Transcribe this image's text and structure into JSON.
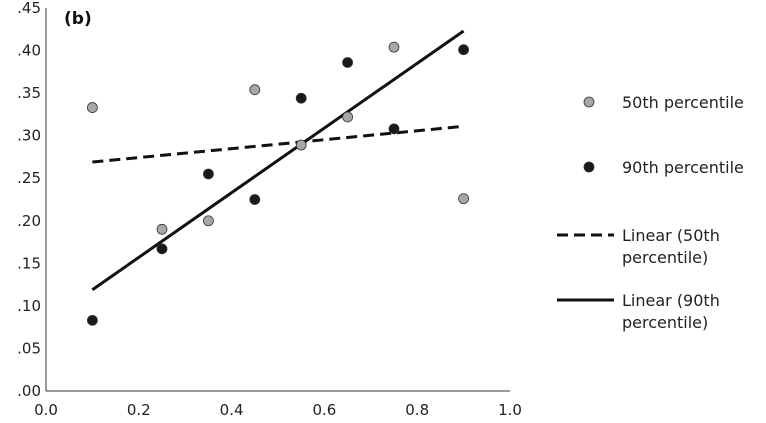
{
  "chart_data": {
    "type": "scatter",
    "panel_label": "(b)",
    "title": "",
    "xlabel": "",
    "ylabel": "",
    "xlim": [
      0.0,
      1.0
    ],
    "ylim": [
      0.0,
      0.45
    ],
    "x_ticks": [
      "0.0",
      "0.2",
      "0.4",
      "0.6",
      "0.8",
      "1.0"
    ],
    "y_ticks": [
      ".00",
      ".05",
      ".10",
      ".15",
      ".20",
      ".25",
      ".30",
      ".35",
      ".40",
      ".45"
    ],
    "grid": false,
    "legend_position": "right",
    "series": [
      {
        "name": "50th percentile",
        "kind": "points",
        "color": "#a8a8a8",
        "points": [
          [
            0.1,
            0.333
          ],
          [
            0.25,
            0.19
          ],
          [
            0.35,
            0.2
          ],
          [
            0.45,
            0.354
          ],
          [
            0.55,
            0.289
          ],
          [
            0.65,
            0.322
          ],
          [
            0.75,
            0.404
          ],
          [
            0.9,
            0.226
          ]
        ]
      },
      {
        "name": "90th percentile",
        "kind": "points",
        "color": "#1a1a1a",
        "points": [
          [
            0.1,
            0.083
          ],
          [
            0.25,
            0.167
          ],
          [
            0.35,
            0.255
          ],
          [
            0.45,
            0.225
          ],
          [
            0.55,
            0.344
          ],
          [
            0.65,
            0.386
          ],
          [
            0.75,
            0.308
          ],
          [
            0.9,
            0.401
          ]
        ]
      },
      {
        "name": "Linear (50th percentile)",
        "legend_lines": [
          "Linear (50th",
          "percentile)"
        ],
        "kind": "trendline",
        "style": "dashed",
        "color": "#111111",
        "points": [
          [
            0.1,
            0.269
          ],
          [
            0.9,
            0.311
          ]
        ]
      },
      {
        "name": "Linear (90th percentile)",
        "legend_lines": [
          "Linear (90th",
          "percentile)"
        ],
        "kind": "trendline",
        "style": "solid",
        "color": "#111111",
        "points": [
          [
            0.1,
            0.119
          ],
          [
            0.9,
            0.423
          ]
        ]
      }
    ]
  }
}
